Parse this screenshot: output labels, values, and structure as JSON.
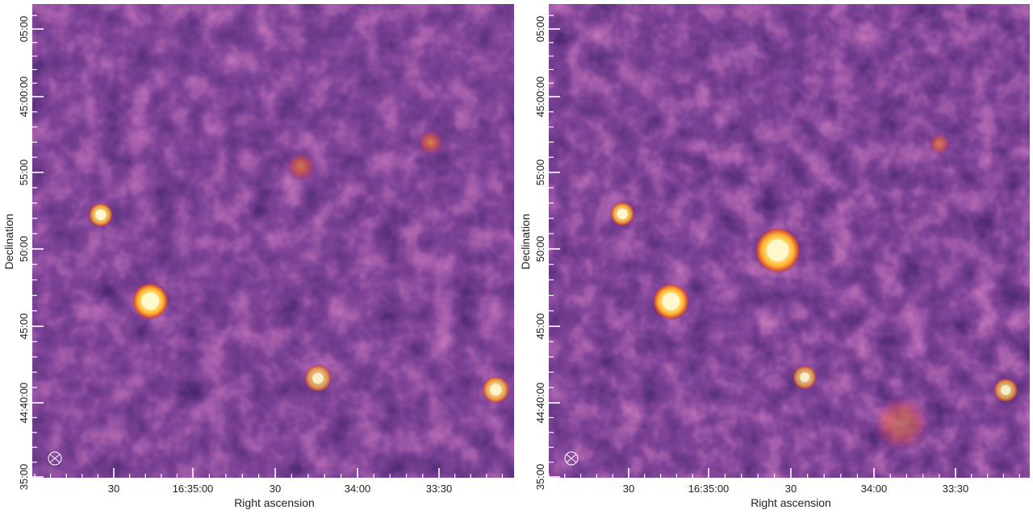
{
  "colors": {
    "background": "#3a0e52",
    "noise_dark": "#0b0419",
    "noise_light": "#a6307a",
    "source_core": "#fffbd8",
    "source_mid": "#ffd046",
    "source_halo": "#e0572a",
    "tick": "#ffffff",
    "text": "#222222"
  },
  "panels": [
    {
      "id": "left",
      "xlabel": "Right ascension",
      "ylabel": "Declination",
      "ra_ticks": [
        "30",
        "16:35:00",
        "30",
        "34:00",
        "33:30"
      ],
      "dec_ticks": [
        "05:00",
        "45:00:00",
        "55:00",
        "50:00",
        "45:00",
        "44:40:00",
        "35:00"
      ],
      "beam_icon": "beam-ellipse-icon",
      "sources": [
        {
          "u": 0.142,
          "v": 0.445,
          "r": 8,
          "level": 0.8
        },
        {
          "u": 0.245,
          "v": 0.627,
          "r": 12,
          "level": 1.0
        },
        {
          "u": 0.558,
          "v": 0.343,
          "r": 9,
          "level": 0.4
        },
        {
          "u": 0.827,
          "v": 0.292,
          "r": 8,
          "level": 0.45
        },
        {
          "u": 0.593,
          "v": 0.79,
          "r": 9,
          "level": 0.6
        },
        {
          "u": 0.962,
          "v": 0.814,
          "r": 9,
          "level": 0.7
        }
      ]
    },
    {
      "id": "right",
      "xlabel": "Right ascension",
      "ylabel": "Declination",
      "ra_ticks": [
        "30",
        "16:35:00",
        "30",
        "34:00",
        "33:30"
      ],
      "dec_ticks": [
        "05:00",
        "45:00:00",
        "55:00",
        "50:00",
        "45:00",
        "44:40:00",
        "35:00"
      ],
      "beam_icon": "beam-ellipse-icon",
      "sources": [
        {
          "u": 0.153,
          "v": 0.443,
          "r": 8,
          "level": 0.8
        },
        {
          "u": 0.254,
          "v": 0.628,
          "r": 12,
          "level": 1.0
        },
        {
          "u": 0.476,
          "v": 0.52,
          "r": 15,
          "level": 1.0
        },
        {
          "u": 0.532,
          "v": 0.788,
          "r": 8,
          "level": 0.55
        },
        {
          "u": 0.95,
          "v": 0.815,
          "r": 8,
          "level": 0.6
        },
        {
          "u": 0.812,
          "v": 0.295,
          "r": 7,
          "level": 0.35
        },
        {
          "u": 0.733,
          "v": 0.885,
          "r": 18,
          "level": 0.18
        }
      ]
    }
  ]
}
